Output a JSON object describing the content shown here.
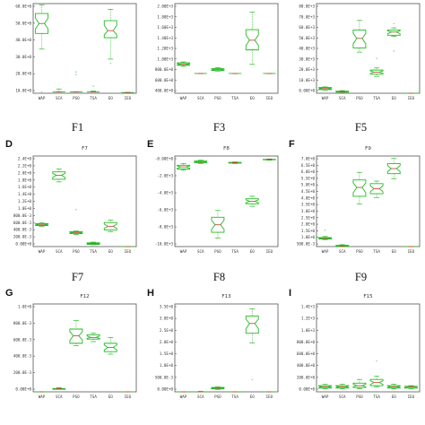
{
  "chart_data": [
    {
      "type": "boxplot",
      "panel_letter": "",
      "title": "",
      "caption": "F1",
      "categories": [
        "WAP",
        "SCA",
        "PSO",
        "TSA",
        "EO",
        "IEO"
      ],
      "yticks": [
        "60.0E+0",
        "50.0E+0",
        "40.0E+0",
        "30.0E+0",
        "20.0E+0",
        "10.0E+0"
      ],
      "ylim": [
        0,
        6.3
      ],
      "boxes": [
        {
          "min": 3.1,
          "q1": 4.2,
          "med": 4.9,
          "q3": 5.6,
          "max": 6.2,
          "outliers": [
            0.1
          ]
        },
        {
          "min": 0.1,
          "q1": 0.1,
          "med": 0.1,
          "q3": 0.1,
          "max": 0.3,
          "outliers": []
        },
        {
          "min": 0.1,
          "q1": 0.1,
          "med": 0.1,
          "q3": 0.1,
          "max": 0.1,
          "outliers": [
            1.5,
            1.3
          ]
        },
        {
          "min": 0.1,
          "q1": 0.1,
          "med": 0.1,
          "q3": 0.1,
          "max": 0.15,
          "outliers": [
            0.5
          ]
        },
        {
          "min": 2.4,
          "q1": 3.9,
          "med": 4.4,
          "q3": 5.1,
          "max": 5.9,
          "outliers": [
            2.1
          ]
        },
        {
          "min": 0.05,
          "q1": 0.05,
          "med": 0.05,
          "q3": 0.05,
          "max": 0.05,
          "outliers": []
        }
      ]
    },
    {
      "type": "boxplot",
      "panel_letter": "",
      "title": "",
      "caption": "F3",
      "categories": [
        "WAP",
        "SCA",
        "PSO",
        "TSA",
        "EO",
        "IEO"
      ],
      "yticks": [
        "2.00E+3",
        "1.80E+3",
        "1.60E+3",
        "1.40E+3",
        "1.20E+3",
        "1.00E+3",
        "800.0E+0",
        "600.0E+0",
        "400.0E+0"
      ],
      "ylim": [
        0,
        9.3
      ],
      "boxes": [
        {
          "min": 2.8,
          "q1": 2.9,
          "med": 3.0,
          "q3": 3.15,
          "max": 3.25,
          "outliers": []
        },
        {
          "min": 2.05,
          "q1": 2.05,
          "med": 2.05,
          "q3": 2.05,
          "max": 2.05,
          "outliers": []
        },
        {
          "min": 2.3,
          "q1": 2.35,
          "med": 2.45,
          "q3": 2.55,
          "max": 2.65,
          "outliers": []
        },
        {
          "min": 2.05,
          "q1": 2.05,
          "med": 2.05,
          "q3": 2.05,
          "max": 2.05,
          "outliers": []
        },
        {
          "min": 3.0,
          "q1": 4.5,
          "med": 5.5,
          "q3": 6.6,
          "max": 8.4,
          "outliers": []
        },
        {
          "min": 2.05,
          "q1": 2.05,
          "med": 2.05,
          "q3": 2.05,
          "max": 2.05,
          "outliers": []
        }
      ]
    },
    {
      "type": "boxplot",
      "panel_letter": "",
      "title": "",
      "caption": "F5",
      "categories": [
        "WAP",
        "SCA",
        "PSO",
        "TSA",
        "EO",
        "IEO"
      ],
      "yticks": [
        "80.0E+3",
        "70.0E+3",
        "60.0E+3",
        "50.0E+3",
        "40.0E+3",
        "30.0E+3",
        "20.0E+3",
        "10.0E+3",
        "0.00E+0"
      ],
      "ylim": [
        0,
        8.5
      ],
      "boxes": [
        {
          "min": 0.3,
          "q1": 0.35,
          "med": 0.45,
          "q3": 0.55,
          "max": 0.6,
          "outliers": []
        },
        {
          "min": 0.1,
          "q1": 0.1,
          "med": 0.15,
          "q3": 0.2,
          "max": 0.25,
          "outliers": []
        },
        {
          "min": 3.9,
          "q1": 4.3,
          "med": 5.2,
          "q3": 6.0,
          "max": 6.9,
          "outliers": []
        },
        {
          "min": 1.6,
          "q1": 1.8,
          "med": 2.0,
          "q3": 2.2,
          "max": 2.4,
          "outliers": [
            3.3
          ]
        },
        {
          "min": 5.4,
          "q1": 5.5,
          "med": 5.8,
          "q3": 6.0,
          "max": 6.2,
          "outliers": [
            4.0,
            6.6
          ]
        },
        {
          "min": 0.0,
          "q1": 0.0,
          "med": 0.0,
          "q3": 0.0,
          "max": 0.0,
          "outliers": []
        }
      ]
    },
    {
      "type": "boxplot",
      "panel_letter": "D",
      "title": "F7",
      "caption": "F7",
      "categories": [
        "WAP",
        "SCA",
        "PSO",
        "TSA",
        "EO",
        "IEO"
      ],
      "yticks": [
        "2.4E+0",
        "2.2E+0",
        "2.0E+0",
        "1.8E+0",
        "1.6E+0",
        "1.4E+0",
        "1.2E+0",
        "1.0E+0",
        "800.0E-3",
        "600.0E-3",
        "400.0E-3",
        "200.0E-3",
        "0.00E+0"
      ],
      "ylim": [
        0,
        2.45
      ],
      "boxes": [
        {
          "min": 0.55,
          "q1": 0.57,
          "med": 0.6,
          "q3": 0.62,
          "max": 0.65,
          "outliers": []
        },
        {
          "min": 1.75,
          "q1": 1.82,
          "med": 1.93,
          "q3": 2.02,
          "max": 2.1,
          "outliers": []
        },
        {
          "min": 0.33,
          "q1": 0.35,
          "med": 0.38,
          "q3": 0.4,
          "max": 0.42,
          "outliers": [
            1.0
          ]
        },
        {
          "min": 0.05,
          "q1": 0.06,
          "med": 0.08,
          "q3": 0.1,
          "max": 0.12,
          "outliers": []
        },
        {
          "min": 0.4,
          "q1": 0.45,
          "med": 0.55,
          "q3": 0.65,
          "max": 0.72,
          "outliers": []
        },
        {
          "min": 0.0,
          "q1": 0.0,
          "med": 0.0,
          "q3": 0.0,
          "max": 0.0,
          "outliers": []
        }
      ]
    },
    {
      "type": "boxplot",
      "panel_letter": "E",
      "title": "F8",
      "caption": "F8",
      "categories": [
        "WAP",
        "SCA",
        "PSO",
        "TSA",
        "EO",
        "IEO"
      ],
      "yticks": [
        "-0.00E+0",
        "-2.0E+3",
        "-4.0E+3",
        "-6.0E+3",
        "-8.0E+3",
        "-10.0E+3"
      ],
      "ylim": [
        -10.5,
        0.3
      ],
      "boxes": [
        {
          "min": -1.4,
          "q1": -1.25,
          "med": -1.0,
          "q3": -0.8,
          "max": -0.6,
          "outliers": []
        },
        {
          "min": -0.6,
          "q1": -0.5,
          "med": -0.4,
          "q3": -0.3,
          "max": -0.2,
          "outliers": []
        },
        {
          "min": -9.5,
          "q1": -8.8,
          "med": -7.9,
          "q3": -7.0,
          "max": -6.2,
          "outliers": []
        },
        {
          "min": -0.6,
          "q1": -0.55,
          "med": -0.5,
          "q3": -0.45,
          "max": -0.4,
          "outliers": []
        },
        {
          "min": -5.7,
          "q1": -5.4,
          "med": -5.1,
          "q3": -4.8,
          "max": -4.5,
          "outliers": []
        },
        {
          "min": -0.2,
          "q1": -0.15,
          "med": -0.1,
          "q3": -0.1,
          "max": -0.05,
          "outliers": []
        }
      ]
    },
    {
      "type": "boxplot",
      "panel_letter": "F",
      "title": "F9",
      "caption": "F9",
      "categories": [
        "WAP",
        "SCA",
        "PSO",
        "TSA",
        "EO",
        "IEO"
      ],
      "yticks": [
        "7.0E+0",
        "6.5E+0",
        "6.0E+0",
        "5.5E+0",
        "5.0E+0",
        "4.5E+0",
        "4.0E+0",
        "3.5E+0",
        "3.0E+0",
        "2.5E+0",
        "2.0E+0",
        "1.5E+0",
        "1.0E+0",
        "500.0E-3"
      ],
      "ylim": [
        0,
        7.2
      ],
      "boxes": [
        {
          "min": 0.55,
          "q1": 0.6,
          "med": 0.65,
          "q3": 0.72,
          "max": 0.8,
          "outliers": [
            1.3
          ]
        },
        {
          "min": 0.0,
          "q1": 0.0,
          "med": 0.05,
          "q3": 0.1,
          "max": 0.15,
          "outliers": []
        },
        {
          "min": 3.4,
          "q1": 4.0,
          "med": 4.7,
          "q3": 5.3,
          "max": 5.9,
          "outliers": []
        },
        {
          "min": 3.9,
          "q1": 4.2,
          "med": 4.6,
          "q3": 5.0,
          "max": 5.2,
          "outliers": []
        },
        {
          "min": 5.4,
          "q1": 5.8,
          "med": 6.2,
          "q3": 6.6,
          "max": 7.0,
          "outliers": []
        },
        {
          "min": 0.0,
          "q1": 0.0,
          "med": 0.0,
          "q3": 0.0,
          "max": 0.0,
          "outliers": []
        }
      ]
    },
    {
      "type": "boxplot",
      "panel_letter": "G",
      "title": "F12",
      "caption": "",
      "categories": [
        "WAP",
        "SCA",
        "PSO",
        "TSA",
        "EO",
        "IEO"
      ],
      "yticks": [
        "1.0E+0",
        "800.0E-3",
        "600.0E-3",
        "400.0E-3",
        "200.0E-3",
        "0.00E+0"
      ],
      "ylim": [
        0,
        1.05
      ],
      "boxes": [
        {
          "min": 0.0,
          "q1": 0.0,
          "med": 0.0,
          "q3": 0.0,
          "max": 0.0,
          "outliers": []
        },
        {
          "min": 0.03,
          "q1": 0.03,
          "med": 0.04,
          "q3": 0.04,
          "max": 0.05,
          "outliers": []
        },
        {
          "min": 0.55,
          "q1": 0.58,
          "med": 0.67,
          "q3": 0.75,
          "max": 0.85,
          "outliers": []
        },
        {
          "min": 0.6,
          "q1": 0.63,
          "med": 0.65,
          "q3": 0.68,
          "max": 0.7,
          "outliers": []
        },
        {
          "min": 0.45,
          "q1": 0.48,
          "med": 0.53,
          "q3": 0.58,
          "max": 0.65,
          "outliers": []
        },
        {
          "min": 0.0,
          "q1": 0.0,
          "med": 0.0,
          "q3": 0.0,
          "max": 0.0,
          "outliers": []
        }
      ]
    },
    {
      "type": "boxplot",
      "panel_letter": "H",
      "title": "F13",
      "caption": "",
      "categories": [
        "WAP",
        "SCA",
        "PSO",
        "TSA",
        "EO",
        "IEO"
      ],
      "yticks": [
        "3.5E+0",
        "3.0E+0",
        "2.5E+0",
        "2.0E+0",
        "1.5E+0",
        "1.0E+0",
        "500.0E-3",
        "0.00E+0"
      ],
      "ylim": [
        0,
        3.6
      ],
      "boxes": [
        {
          "min": 0.0,
          "q1": 0.0,
          "med": 0.0,
          "q3": 0.0,
          "max": 0.0,
          "outliers": []
        },
        {
          "min": 0.0,
          "q1": 0.0,
          "med": 0.0,
          "q3": 0.0,
          "max": 0.02,
          "outliers": []
        },
        {
          "min": 0.1,
          "q1": 0.12,
          "med": 0.15,
          "q3": 0.18,
          "max": 0.2,
          "outliers": []
        },
        {
          "min": 0.0,
          "q1": 0.0,
          "med": 0.0,
          "q3": 0.0,
          "max": 0.0,
          "outliers": []
        },
        {
          "min": 2.0,
          "q1": 2.4,
          "med": 2.8,
          "q3": 3.1,
          "max": 3.4,
          "outliers": [
            0.5
          ]
        },
        {
          "min": 0.0,
          "q1": 0.0,
          "med": 0.0,
          "q3": 0.0,
          "max": 0.0,
          "outliers": []
        }
      ]
    },
    {
      "type": "boxplot",
      "panel_letter": "I",
      "title": "F15",
      "caption": "",
      "categories": [
        "WAP",
        "SCA",
        "PSO",
        "TSA",
        "EO",
        "IEO"
      ],
      "yticks": [
        "1.4E+3",
        "1.2E+3",
        "1.0E+3",
        "800.0E+0",
        "600.0E+0",
        "400.0E+0",
        "200.0E+0",
        "0.00E+0"
      ],
      "ylim": [
        0,
        1.42
      ],
      "boxes": [
        {
          "min": 0.05,
          "q1": 0.06,
          "med": 0.08,
          "q3": 0.1,
          "max": 0.12,
          "outliers": []
        },
        {
          "min": 0.05,
          "q1": 0.06,
          "med": 0.08,
          "q3": 0.1,
          "max": 0.12,
          "outliers": []
        },
        {
          "min": 0.05,
          "q1": 0.07,
          "med": 0.1,
          "q3": 0.14,
          "max": 0.2,
          "outliers": []
        },
        {
          "min": 0.08,
          "q1": 0.1,
          "med": 0.15,
          "q3": 0.2,
          "max": 0.25,
          "outliers": [
            0.5
          ]
        },
        {
          "min": 0.05,
          "q1": 0.06,
          "med": 0.08,
          "q3": 0.1,
          "max": 0.12,
          "outliers": []
        },
        {
          "min": 0.05,
          "q1": 0.06,
          "med": 0.08,
          "q3": 0.09,
          "max": 0.1,
          "outliers": []
        }
      ]
    }
  ],
  "style": {
    "box_color": "#22bb22",
    "outlier_color": "#9bd09b",
    "axis_color": "#555555"
  }
}
